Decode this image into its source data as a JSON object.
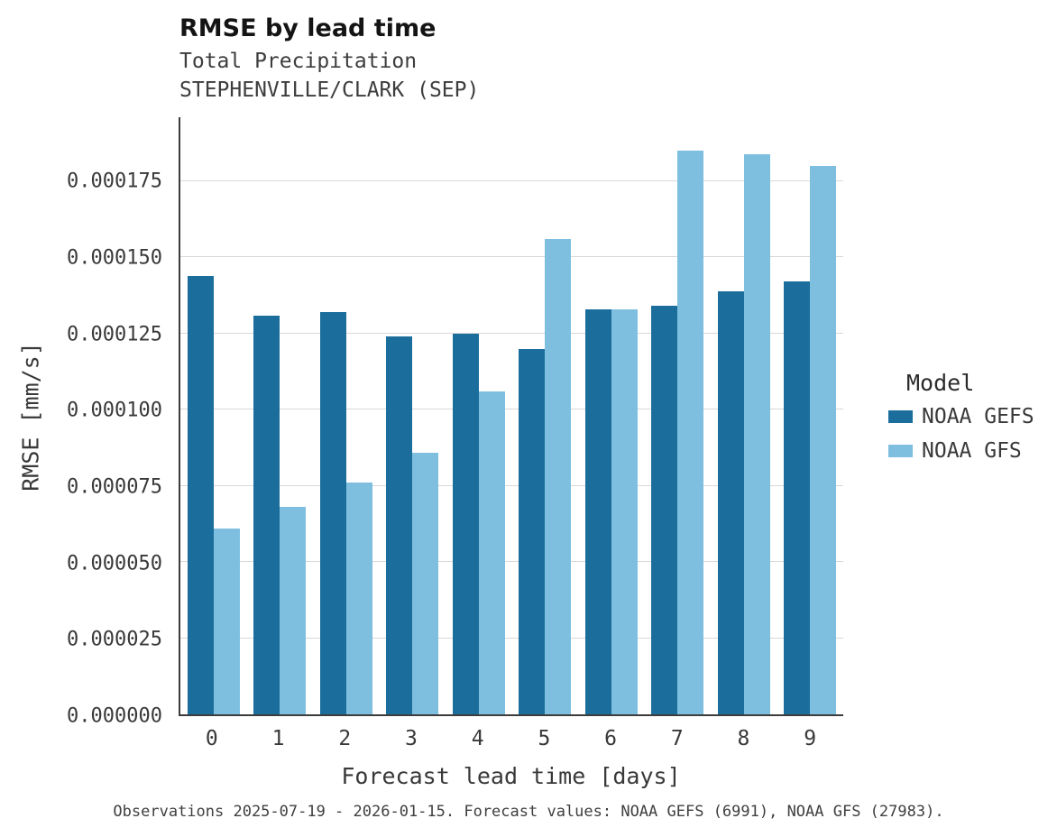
{
  "header": {
    "title": "RMSE by lead time",
    "subtitle_line1": "Total Precipitation",
    "subtitle_line2": "STEPHENVILLE/CLARK (SEP)"
  },
  "chart_data": {
    "type": "bar",
    "title": "RMSE by lead time",
    "subtitle": "Total Precipitation STEPHENVILLE/CLARK (SEP)",
    "xlabel": "Forecast lead time [days]",
    "ylabel": "RMSE [mm/s]",
    "categories": [
      "0",
      "1",
      "2",
      "3",
      "4",
      "5",
      "6",
      "7",
      "8",
      "9"
    ],
    "series": [
      {
        "name": "NOAA GEFS",
        "color": "#1b6e9c",
        "values": [
          0.000144,
          0.000131,
          0.000132,
          0.000124,
          0.000125,
          0.00012,
          0.000133,
          0.000134,
          0.000139,
          0.000142
        ]
      },
      {
        "name": "NOAA GFS",
        "color": "#7ebfe0",
        "values": [
          6.1e-05,
          6.8e-05,
          7.6e-05,
          8.6e-05,
          0.000106,
          0.000156,
          0.000133,
          0.000185,
          0.000184,
          0.00018
        ]
      }
    ],
    "ylim": [
      0,
      0.000196
    ],
    "yticks": [
      {
        "value": 0.0,
        "label": "0.000000"
      },
      {
        "value": 2.5e-05,
        "label": "0.000025"
      },
      {
        "value": 5e-05,
        "label": "0.000050"
      },
      {
        "value": 7.5e-05,
        "label": "0.000075"
      },
      {
        "value": 0.0001,
        "label": "0.000100"
      },
      {
        "value": 0.000125,
        "label": "0.000125"
      },
      {
        "value": 0.00015,
        "label": "0.000150"
      },
      {
        "value": 0.000175,
        "label": "0.000175"
      }
    ],
    "grid": "horizontal",
    "legend_position": "right"
  },
  "legend": {
    "title": "Model",
    "entries": [
      "NOAA GEFS",
      "NOAA GFS"
    ]
  },
  "footer": {
    "caption": "Observations 2025-07-19 - 2026-01-15. Forecast values: NOAA GEFS (6991), NOAA GFS (27983)."
  }
}
